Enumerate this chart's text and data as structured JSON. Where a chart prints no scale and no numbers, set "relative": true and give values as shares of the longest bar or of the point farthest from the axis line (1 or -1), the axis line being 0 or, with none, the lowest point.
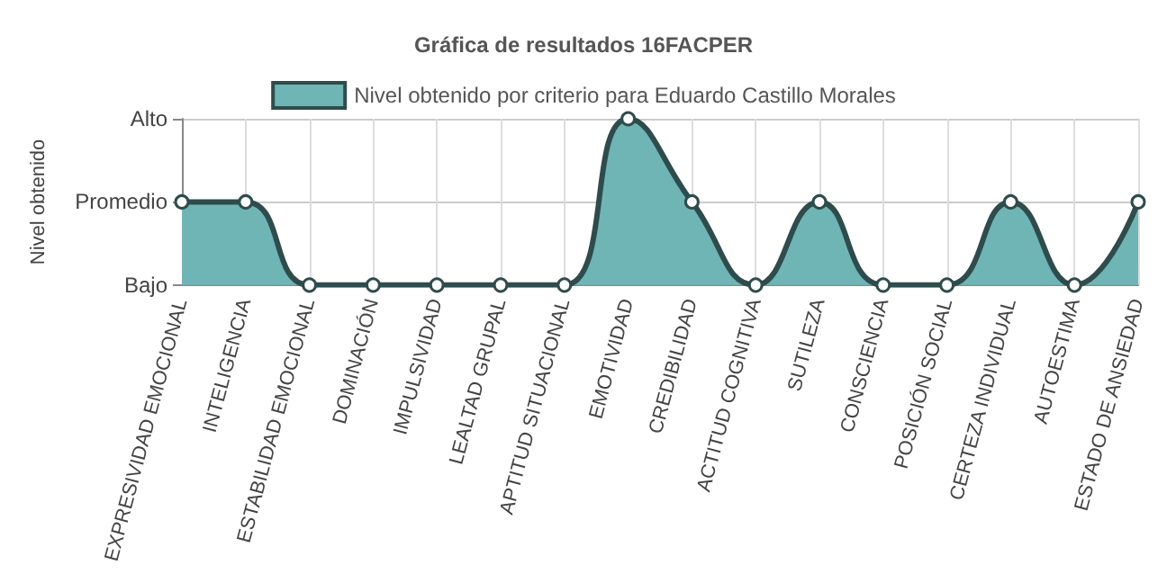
{
  "chart_data": {
    "type": "area",
    "title": "Gráfica de resultados 16FACPER",
    "ylabel": "Nivel obtenido",
    "relative": true,
    "categories": [
      "EXPRESIVIDAD EMOCIONAL",
      "INTELIGENCIA",
      "ESTABILIDAD EMOCIONAL",
      "DOMINACIÓN",
      "IMPULSIVIDAD",
      "LEALTAD GRUPAL",
      "APTITUD SITUACIONAL",
      "EMOTIVIDAD",
      "CREDIBILIDAD",
      "ACTITUD COGNITIVA",
      "SUTILEZA",
      "CONSCIENCIA",
      "POSICIÓN SOCIAL",
      "CERTEZA INDIVIDUAL",
      "AUTOESTIMA",
      "ESTADO DE ANSIEDAD"
    ],
    "series": [
      {
        "name": "Nivel obtenido por criterio para Eduardo Castillo Morales",
        "color": "#6fb5b5",
        "values": [
          0.5,
          0.5,
          0,
          0,
          0,
          0,
          0,
          1,
          0.5,
          0,
          0.5,
          0,
          0,
          0.5,
          0,
          0.5
        ]
      }
    ],
    "annotations": [
      "Bajo",
      "Promedio",
      "Alto"
    ],
    "grid": true,
    "legend": "top",
    "marker": "circle"
  }
}
